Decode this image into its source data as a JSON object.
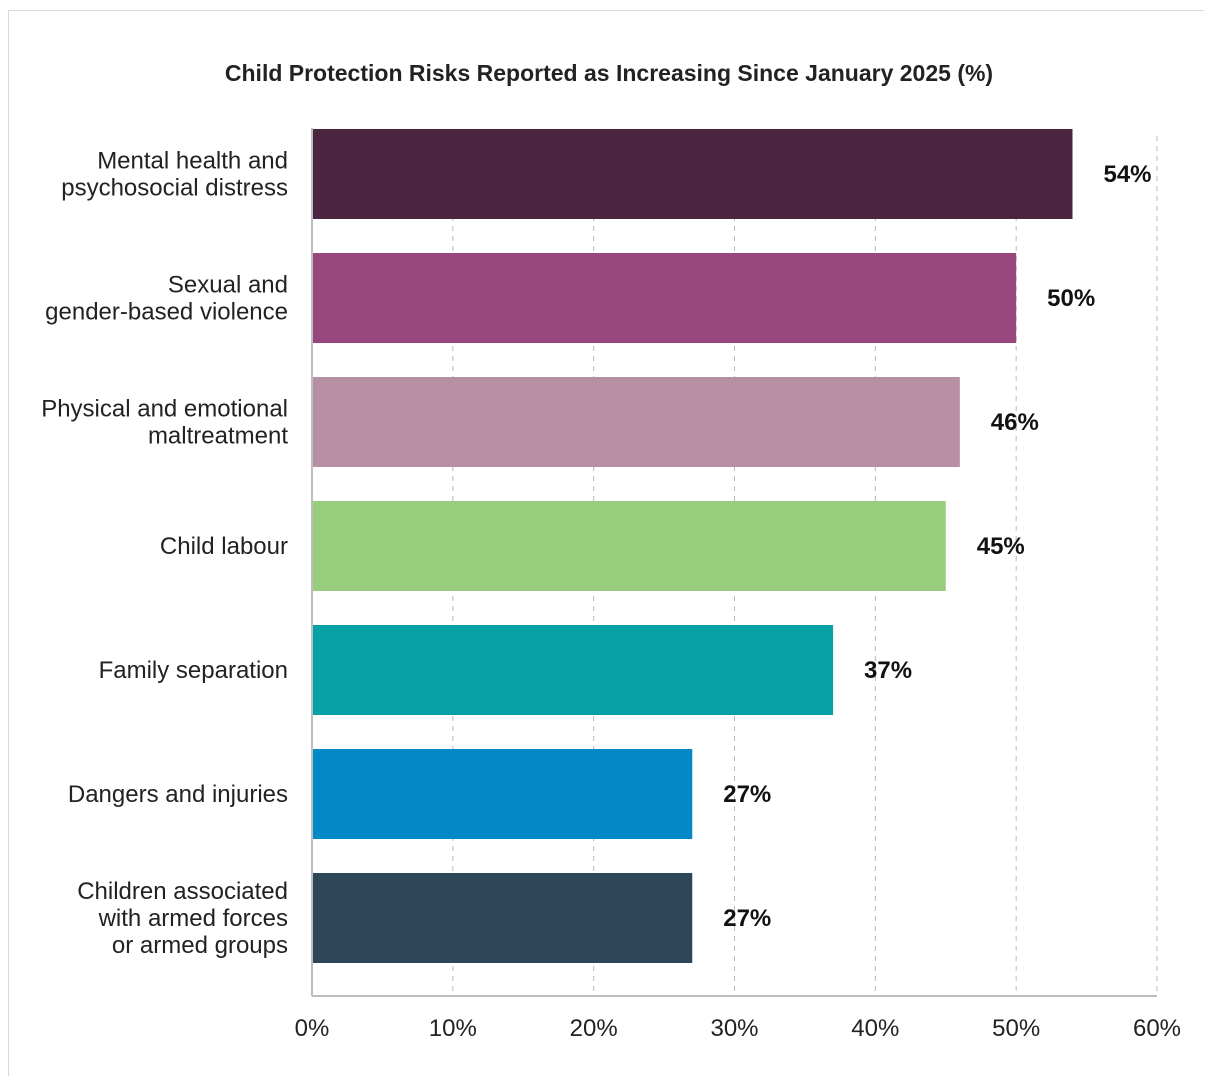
{
  "chart_data": {
    "type": "bar",
    "orientation": "horizontal",
    "title": "Child Protection Risks Reported as Increasing Since January 2025 (%)",
    "categories": [
      [
        "Mental health and",
        "psychosocial distress"
      ],
      [
        "Sexual and",
        "gender-based violence"
      ],
      [
        "Physical and emotional",
        "maltreatment"
      ],
      [
        "Child labour"
      ],
      [
        "Family separation"
      ],
      [
        "Dangers and injuries"
      ],
      [
        "Children associated",
        "with armed forces",
        "or armed groups"
      ]
    ],
    "values": [
      54,
      50,
      46,
      45,
      37,
      27,
      27
    ],
    "value_labels": [
      "54%",
      "50%",
      "46%",
      "45%",
      "37%",
      "27%",
      "27%"
    ],
    "colors": [
      "#4b243f",
      "#97477d",
      "#b790a3",
      "#98cd7e",
      "#06a0a5",
      "#0389c5",
      "#2d4759"
    ],
    "xlim": [
      0,
      60
    ],
    "xticks": [
      0,
      10,
      20,
      30,
      40,
      50,
      60
    ],
    "xtick_labels": [
      "0%",
      "10%",
      "20%",
      "30%",
      "40%",
      "50%",
      "60%"
    ],
    "grid": "vertical-dashed",
    "legend": "none"
  }
}
